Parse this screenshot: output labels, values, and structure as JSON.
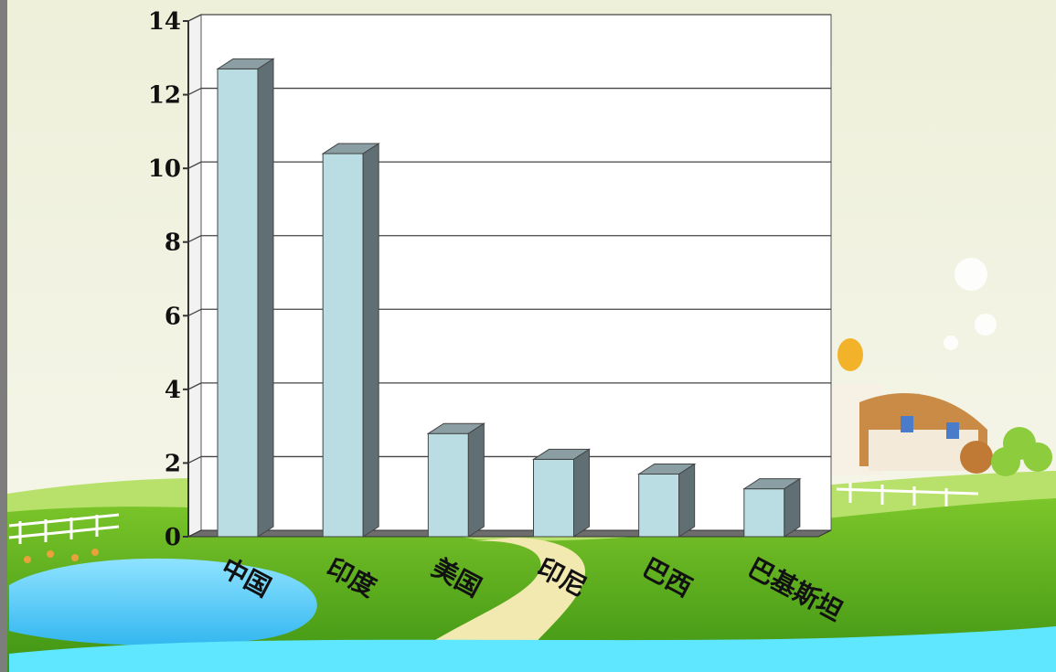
{
  "chart_data": {
    "type": "bar",
    "title": "",
    "xlabel": "",
    "ylabel": "",
    "categories": [
      "中国",
      "印度",
      "美国",
      "印尼",
      "巴西",
      "巴基斯坦"
    ],
    "values": [
      12.7,
      10.4,
      2.8,
      2.1,
      1.7,
      1.3
    ],
    "ylim": [
      0,
      14
    ],
    "yticks": [
      "0",
      "2",
      "4",
      "6",
      "8",
      "10",
      "12",
      "14"
    ],
    "grid": true,
    "legend": "none",
    "colors": {
      "bar_front": "#b9dde2",
      "bar_top": "#8a9ea3",
      "bar_side": "#5f6f73",
      "plot_bg": "#ffffff",
      "grid": "#444444",
      "floor": "#6d6d6d"
    }
  }
}
